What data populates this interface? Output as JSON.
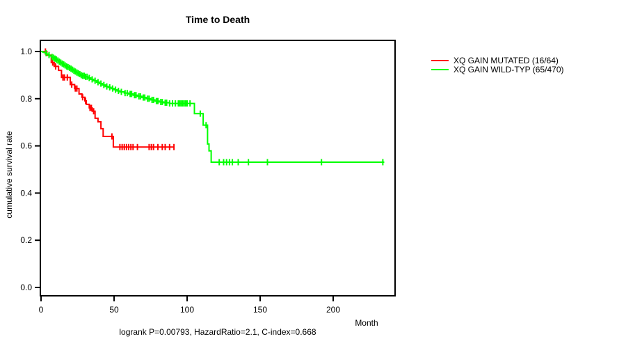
{
  "figure": {
    "title": "Time to Death",
    "y_axis_label": "cumulative survival rate",
    "x_axis_label": "Month",
    "footnote": "logrank P=0.00793, HazardRatio=2.1, C-index=0.668"
  },
  "legend": {
    "items": [
      {
        "label": "XQ GAIN MUTATED (16/64)",
        "color": "#ff0000"
      },
      {
        "label": "XQ GAIN WILD-TYP (65/470)",
        "color": "#00ff00"
      }
    ]
  },
  "chart_data": {
    "type": "line",
    "subtype": "kaplan_meier_step",
    "title": "Time to Death",
    "xlabel": "Month",
    "ylabel": "cumulative survival rate",
    "xlim": [
      0,
      242
    ],
    "ylim": [
      -0.035,
      1.047
    ],
    "xticks": [
      0,
      50,
      100,
      150,
      200
    ],
    "yticks": [
      0.0,
      0.2,
      0.4,
      0.6,
      0.8,
      1.0
    ],
    "grid": false,
    "legend_position": "outside-right",
    "series": [
      {
        "name": "XQ GAIN MUTATED (16/64)",
        "color": "#ff0000",
        "events_over_n": "16/64",
        "end_time": 91,
        "steps": [
          [
            0,
            1.0
          ],
          [
            4,
            0.984
          ],
          [
            7,
            0.953
          ],
          [
            9,
            0.937
          ],
          [
            12,
            0.92
          ],
          [
            14,
            0.89
          ],
          [
            20,
            0.86
          ],
          [
            23,
            0.843
          ],
          [
            26,
            0.82
          ],
          [
            28,
            0.806
          ],
          [
            30,
            0.791
          ],
          [
            31,
            0.776
          ],
          [
            33,
            0.761
          ],
          [
            35,
            0.747
          ],
          [
            37,
            0.717
          ],
          [
            39,
            0.702
          ],
          [
            41,
            0.673
          ],
          [
            42.5,
            0.64
          ],
          [
            49.5,
            0.595
          ]
        ],
        "censor_times": [
          3,
          8,
          10,
          15,
          16,
          18,
          21,
          23.5,
          24.5,
          28.5,
          30.5,
          33.5,
          34.5,
          36,
          48.5,
          54,
          55.5,
          57,
          58.5,
          60,
          61.5,
          63,
          66,
          74,
          75.5,
          77,
          80,
          83,
          85,
          88,
          91
        ]
      },
      {
        "name": "XQ GAIN WILD-TYP (65/470)",
        "color": "#00ff00",
        "events_over_n": "65/470",
        "end_time": 235,
        "steps": [
          [
            0,
            1.0
          ],
          [
            1,
            0.998
          ],
          [
            2,
            0.996
          ],
          [
            3,
            0.993
          ],
          [
            4,
            0.989
          ],
          [
            5,
            0.985
          ],
          [
            6,
            0.981
          ],
          [
            7,
            0.977
          ],
          [
            8,
            0.974
          ],
          [
            9,
            0.97
          ],
          [
            10,
            0.966
          ],
          [
            11,
            0.962
          ],
          [
            12,
            0.957
          ],
          [
            13,
            0.953
          ],
          [
            14,
            0.949
          ],
          [
            15,
            0.945
          ],
          [
            16,
            0.941
          ],
          [
            17,
            0.937
          ],
          [
            18,
            0.934
          ],
          [
            19,
            0.931
          ],
          [
            20,
            0.927
          ],
          [
            21,
            0.923
          ],
          [
            22,
            0.919
          ],
          [
            23,
            0.915
          ],
          [
            24,
            0.911
          ],
          [
            25,
            0.908
          ],
          [
            26,
            0.904
          ],
          [
            27,
            0.9
          ],
          [
            28,
            0.897
          ],
          [
            30,
            0.893
          ],
          [
            32,
            0.888
          ],
          [
            34,
            0.882
          ],
          [
            36,
            0.876
          ],
          [
            38,
            0.87
          ],
          [
            40,
            0.864
          ],
          [
            42,
            0.858
          ],
          [
            44,
            0.852
          ],
          [
            46,
            0.848
          ],
          [
            48,
            0.843
          ],
          [
            50,
            0.838
          ],
          [
            52,
            0.833
          ],
          [
            54,
            0.829
          ],
          [
            57,
            0.824
          ],
          [
            60,
            0.82
          ],
          [
            63,
            0.815
          ],
          [
            66,
            0.81
          ],
          [
            69,
            0.805
          ],
          [
            72,
            0.8
          ],
          [
            75,
            0.795
          ],
          [
            78,
            0.79
          ],
          [
            81,
            0.786
          ],
          [
            84,
            0.783
          ],
          [
            88,
            0.78
          ],
          [
            105,
            0.737
          ],
          [
            111,
            0.688
          ],
          [
            114,
            0.608
          ],
          [
            115,
            0.579
          ],
          [
            116.5,
            0.531
          ]
        ],
        "censor_times": [
          3.5,
          5.5,
          7.5,
          8.5,
          9.5,
          10.5,
          11.5,
          12.5,
          13.5,
          14.5,
          15.5,
          16.5,
          17.5,
          18.5,
          19.5,
          20.5,
          21.5,
          22.5,
          23.5,
          24.5,
          25.5,
          26.5,
          27.5,
          28.5,
          29.5,
          30.5,
          31.5,
          33,
          35,
          37,
          39,
          41,
          43,
          45,
          47,
          49,
          51,
          53,
          55,
          57.5,
          59,
          61,
          62,
          64,
          65,
          67,
          68,
          70,
          71,
          73,
          74,
          76,
          77,
          79,
          80,
          82,
          83,
          85,
          86,
          88,
          90,
          92,
          94,
          95,
          96,
          97,
          98,
          99,
          100,
          102,
          109,
          113,
          122,
          125,
          127,
          129,
          131,
          135,
          142,
          155,
          192,
          234
        ]
      }
    ]
  }
}
